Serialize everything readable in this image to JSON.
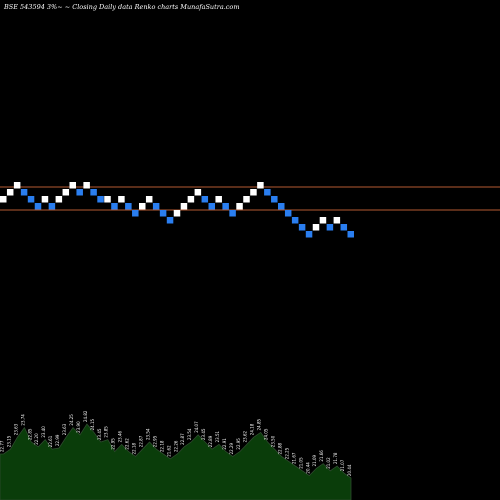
{
  "chart_data": {
    "type": "renko",
    "title": "BSE 543594  3%~ ~ Closing Daily data  Renko  charts MunafaSutra.com",
    "reference_lines": [
      {
        "price": 23.75,
        "color": "#b45a32"
      },
      {
        "price": 23.0,
        "color": "#b45a32"
      }
    ],
    "price_range": [
      20.5,
      25.6
    ],
    "brick_size": 0.65,
    "colors": {
      "up": "#ffffff",
      "down": "#2a7ef0",
      "volume_fill": "#0a3d0a",
      "volume_line": "#2e4a2e",
      "line": "#b45a32"
    },
    "bricks": [
      {
        "dir": "up",
        "level": 0
      },
      {
        "dir": "up",
        "level": 1
      },
      {
        "dir": "up",
        "level": 2
      },
      {
        "dir": "down",
        "level": 1
      },
      {
        "dir": "down",
        "level": 0
      },
      {
        "dir": "down",
        "level": -1
      },
      {
        "dir": "up",
        "level": 0
      },
      {
        "dir": "down",
        "level": -1
      },
      {
        "dir": "up",
        "level": 0
      },
      {
        "dir": "up",
        "level": 1
      },
      {
        "dir": "up",
        "level": 2
      },
      {
        "dir": "down",
        "level": 1
      },
      {
        "dir": "up",
        "level": 2
      },
      {
        "dir": "down",
        "level": 1
      },
      {
        "dir": "down",
        "level": 0
      },
      {
        "dir": "up",
        "level": 0
      },
      {
        "dir": "down",
        "level": -1
      },
      {
        "dir": "up",
        "level": 0
      },
      {
        "dir": "down",
        "level": -1
      },
      {
        "dir": "down",
        "level": -2
      },
      {
        "dir": "up",
        "level": -1
      },
      {
        "dir": "up",
        "level": 0
      },
      {
        "dir": "down",
        "level": -1
      },
      {
        "dir": "down",
        "level": -2
      },
      {
        "dir": "down",
        "level": -3
      },
      {
        "dir": "up",
        "level": -2
      },
      {
        "dir": "up",
        "level": -1
      },
      {
        "dir": "up",
        "level": 0
      },
      {
        "dir": "up",
        "level": 1
      },
      {
        "dir": "down",
        "level": 0
      },
      {
        "dir": "down",
        "level": -1
      },
      {
        "dir": "up",
        "level": 0
      },
      {
        "dir": "down",
        "level": -1
      },
      {
        "dir": "down",
        "level": -2
      },
      {
        "dir": "up",
        "level": -1
      },
      {
        "dir": "up",
        "level": 0
      },
      {
        "dir": "up",
        "level": 1
      },
      {
        "dir": "up",
        "level": 2
      },
      {
        "dir": "down",
        "level": 1
      },
      {
        "dir": "down",
        "level": 0
      },
      {
        "dir": "down",
        "level": -1
      },
      {
        "dir": "down",
        "level": -2
      },
      {
        "dir": "down",
        "level": -3
      },
      {
        "dir": "down",
        "level": -4
      },
      {
        "dir": "down",
        "level": -5
      },
      {
        "dir": "up",
        "level": -4
      },
      {
        "dir": "up",
        "level": -3
      },
      {
        "dir": "down",
        "level": -4
      },
      {
        "dir": "up",
        "level": -3
      },
      {
        "dir": "down",
        "level": -4
      },
      {
        "dir": "down",
        "level": -5
      }
    ],
    "value_labels": [
      "22.77",
      "23.15",
      "23.63",
      "23.74",
      "22.85",
      "22.20",
      "23.40",
      "22.61",
      "22.99",
      "23.63",
      "24.25",
      "23.90",
      "24.82",
      "24.15",
      "23.45",
      "23.85",
      "22.95",
      "23.46",
      "22.62",
      "22.18",
      "22.87",
      "23.54",
      "22.95",
      "22.18",
      "21.62",
      "22.26",
      "22.87",
      "23.54",
      "24.07",
      "23.45",
      "22.89",
      "23.51",
      "22.91",
      "22.29",
      "22.95",
      "23.62",
      "24.18",
      "24.85",
      "24.05",
      "23.50",
      "22.88",
      "22.25",
      "21.67",
      "21.05",
      "20.44",
      "21.09",
      "21.66",
      "21.02",
      "21.78",
      "21.07",
      "20.44"
    ],
    "volume": [
      30,
      34,
      44,
      52,
      40,
      36,
      42,
      34,
      35,
      44,
      52,
      46,
      55,
      48,
      40,
      42,
      32,
      38,
      32,
      28,
      34,
      40,
      34,
      30,
      26,
      30,
      36,
      40,
      46,
      40,
      34,
      38,
      32,
      28,
      32,
      38,
      44,
      48,
      40,
      34,
      28,
      24,
      20,
      16,
      12,
      18,
      22,
      16,
      20,
      14,
      10
    ]
  }
}
